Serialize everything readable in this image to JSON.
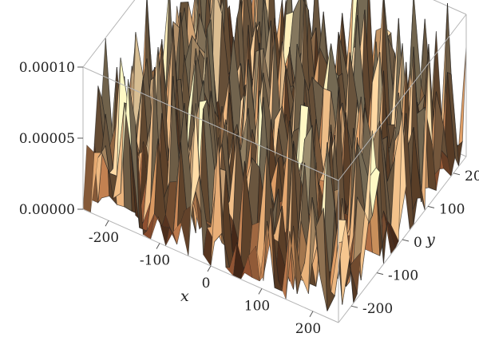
{
  "chart_data": {
    "type": "surface3d",
    "title": "",
    "xlabel": "x",
    "ylabel": "y",
    "zlabel": "",
    "xlim": [
      -250,
      250
    ],
    "ylim": [
      -250,
      250
    ],
    "zlim": [
      0,
      0.0001
    ],
    "x_ticks": [
      "-200",
      "-100",
      "0",
      "100",
      "200"
    ],
    "y_ticks": [
      "-200",
      "-100",
      "0",
      "100",
      "200"
    ],
    "z_ticks": [
      "0.00000",
      "0.00005",
      "0.00010"
    ],
    "colors": {
      "low": "#5a1e0e",
      "mid": "#c48a58",
      "high": "#f3dcae",
      "edge": "#1a1a1a",
      "box": "#b5b5b5"
    },
    "description_values": {
      "surface": "noisy spiky surface over x,y in [-250,250] with peaks up to about 0.00011 and many points near 0"
    }
  }
}
